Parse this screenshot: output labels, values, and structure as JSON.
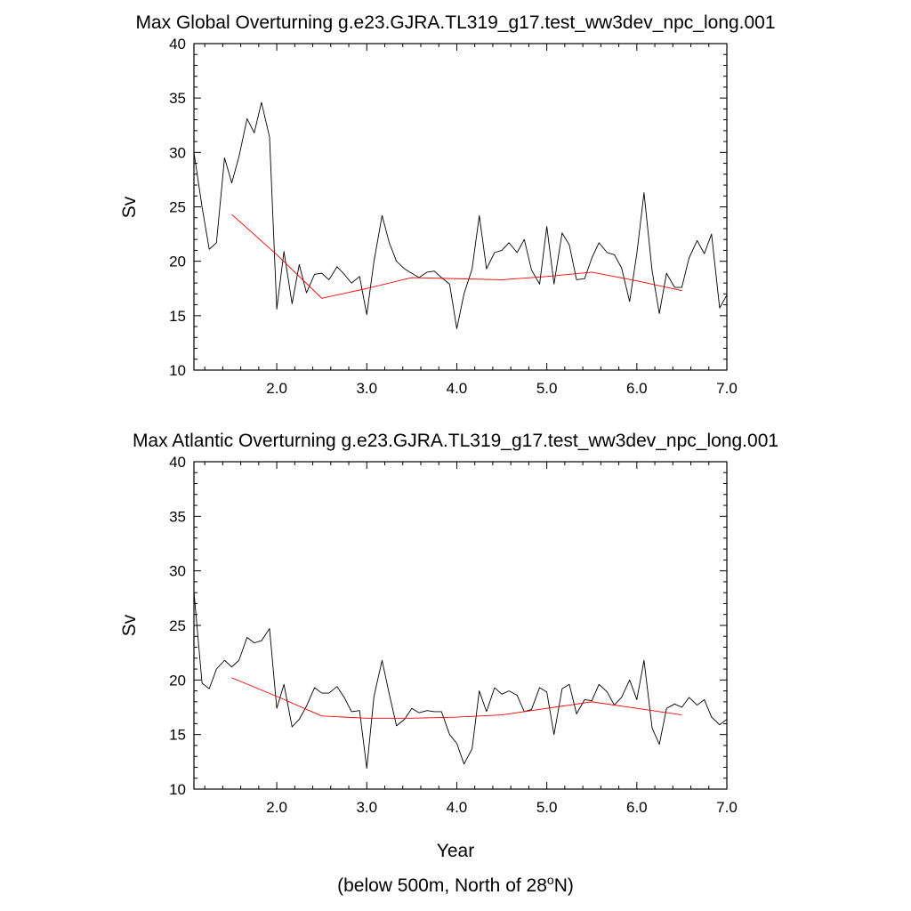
{
  "footnote": {
    "prefix": "(below 500m, North of 28",
    "superscript": "o",
    "suffix": "N)"
  },
  "colors": {
    "raw_series": "#000000",
    "smoothed_series": "#ff0000",
    "frame": "#000000",
    "background": "#ffffff"
  },
  "chart_data": [
    {
      "type": "line",
      "title": "Max Global Overturning g.e23.GJRA.TL319_g17.test_ww3dev_npc_long.001",
      "xlabel": "",
      "ylabel": "Sv",
      "xlim": [
        1.08,
        7.0
      ],
      "ylim": [
        10,
        40
      ],
      "xticks": [
        2.0,
        3.0,
        4.0,
        5.0,
        6.0,
        7.0
      ],
      "xtick_labels": [
        "2.0",
        "3.0",
        "4.0",
        "5.0",
        "6.0",
        "7.0"
      ],
      "yticks": [
        10,
        15,
        20,
        25,
        30,
        35,
        40
      ],
      "ytick_labels": [
        "10",
        "15",
        "20",
        "25",
        "30",
        "35",
        "40"
      ],
      "grid": false,
      "series": [
        {
          "x": [
            1.08,
            1.17,
            1.25,
            1.33,
            1.42,
            1.5,
            1.58,
            1.67,
            1.75,
            1.83,
            1.92,
            2.0,
            2.08,
            2.17,
            2.25,
            2.33,
            2.42,
            2.5,
            2.58,
            2.67,
            2.75,
            2.83,
            2.92,
            3.0,
            3.08,
            3.17,
            3.25,
            3.33,
            3.42,
            3.5,
            3.58,
            3.67,
            3.75,
            3.83,
            3.92,
            4.0,
            4.08,
            4.17,
            4.25,
            4.33,
            4.42,
            4.5,
            4.58,
            4.67,
            4.75,
            4.83,
            4.92,
            5.0,
            5.08,
            5.17,
            5.25,
            5.33,
            5.42,
            5.5,
            5.58,
            5.67,
            5.75,
            5.83,
            5.92,
            6.0,
            6.08,
            6.17,
            6.25,
            6.33,
            6.42,
            6.5,
            6.58,
            6.67,
            6.75,
            6.83,
            6.92,
            7.0
          ],
          "values": [
            30.0,
            25.0,
            21.1,
            21.7,
            29.5,
            27.2,
            29.6,
            33.1,
            31.8,
            34.6,
            31.4,
            15.6,
            20.9,
            16.1,
            19.7,
            17.1,
            18.8,
            18.9,
            18.3,
            19.5,
            18.8,
            18.0,
            18.6,
            15.1,
            20.0,
            24.2,
            21.7,
            20.0,
            19.3,
            18.9,
            18.5,
            19.0,
            19.1,
            18.5,
            17.9,
            13.8,
            17.0,
            19.3,
            24.2,
            19.3,
            20.8,
            21.0,
            21.7,
            20.8,
            22.0,
            19.2,
            17.9,
            23.2,
            17.9,
            22.6,
            21.5,
            18.3,
            18.4,
            20.3,
            21.7,
            20.8,
            20.6,
            19.4,
            16.3,
            20.7,
            26.3,
            19.1,
            15.2,
            18.9,
            17.6,
            17.6,
            20.3,
            21.9,
            20.7,
            22.5,
            15.7,
            16.9
          ]
        },
        {
          "x": [
            1.5,
            2.0,
            2.5,
            3.0,
            3.5,
            4.0,
            4.5,
            5.0,
            5.5,
            6.0,
            6.5
          ],
          "values": [
            24.3,
            20.6,
            16.6,
            17.5,
            18.5,
            18.4,
            18.3,
            18.6,
            19.0,
            18.2,
            17.3
          ]
        }
      ]
    },
    {
      "type": "line",
      "title": "Max Atlantic Overturning g.e23.GJRA.TL319_g17.test_ww3dev_npc_long.001",
      "xlabel": "Year",
      "ylabel": "Sv",
      "xlim": [
        1.08,
        7.0
      ],
      "ylim": [
        10,
        40
      ],
      "xticks": [
        2.0,
        3.0,
        4.0,
        5.0,
        6.0,
        7.0
      ],
      "xtick_labels": [
        "2.0",
        "3.0",
        "4.0",
        "5.0",
        "6.0",
        "7.0"
      ],
      "yticks": [
        10,
        15,
        20,
        25,
        30,
        35,
        40
      ],
      "ytick_labels": [
        "10",
        "15",
        "20",
        "25",
        "30",
        "35",
        "40"
      ],
      "grid": false,
      "series": [
        {
          "x": [
            1.08,
            1.17,
            1.25,
            1.33,
            1.42,
            1.5,
            1.58,
            1.67,
            1.75,
            1.83,
            1.92,
            2.0,
            2.08,
            2.17,
            2.25,
            2.33,
            2.42,
            2.5,
            2.58,
            2.67,
            2.75,
            2.83,
            2.92,
            3.0,
            3.08,
            3.17,
            3.25,
            3.33,
            3.42,
            3.5,
            3.58,
            3.67,
            3.75,
            3.83,
            3.92,
            4.0,
            4.08,
            4.17,
            4.25,
            4.33,
            4.42,
            4.5,
            4.58,
            4.67,
            4.75,
            4.83,
            4.92,
            5.0,
            5.08,
            5.17,
            5.25,
            5.33,
            5.42,
            5.5,
            5.58,
            5.67,
            5.75,
            5.83,
            5.92,
            6.0,
            6.08,
            6.17,
            6.25,
            6.33,
            6.42,
            6.5,
            6.58,
            6.67,
            6.75,
            6.83,
            6.92,
            7.0
          ],
          "values": [
            28.1,
            19.7,
            19.2,
            21.0,
            21.8,
            21.2,
            21.8,
            23.9,
            23.4,
            23.6,
            24.7,
            17.4,
            19.6,
            15.7,
            16.4,
            17.6,
            19.3,
            18.8,
            18.8,
            19.4,
            18.4,
            17.1,
            17.2,
            11.9,
            18.5,
            21.8,
            18.7,
            15.8,
            16.4,
            17.4,
            17.0,
            17.2,
            17.1,
            17.1,
            15.0,
            14.2,
            12.3,
            13.7,
            19.0,
            17.1,
            19.3,
            18.7,
            19.0,
            18.6,
            17.1,
            17.3,
            19.3,
            18.9,
            15.0,
            19.2,
            19.6,
            16.9,
            18.2,
            18.1,
            19.6,
            18.9,
            17.7,
            18.4,
            20.0,
            18.2,
            21.8,
            15.6,
            14.1,
            17.4,
            17.8,
            17.5,
            18.4,
            17.7,
            18.2,
            16.6,
            15.9,
            16.4
          ]
        },
        {
          "x": [
            1.5,
            2.0,
            2.5,
            3.0,
            3.5,
            4.0,
            4.5,
            5.0,
            5.5,
            6.0,
            6.5
          ],
          "values": [
            20.2,
            18.5,
            16.7,
            16.5,
            16.5,
            16.6,
            16.8,
            17.4,
            18.0,
            17.4,
            16.8
          ]
        }
      ]
    }
  ]
}
